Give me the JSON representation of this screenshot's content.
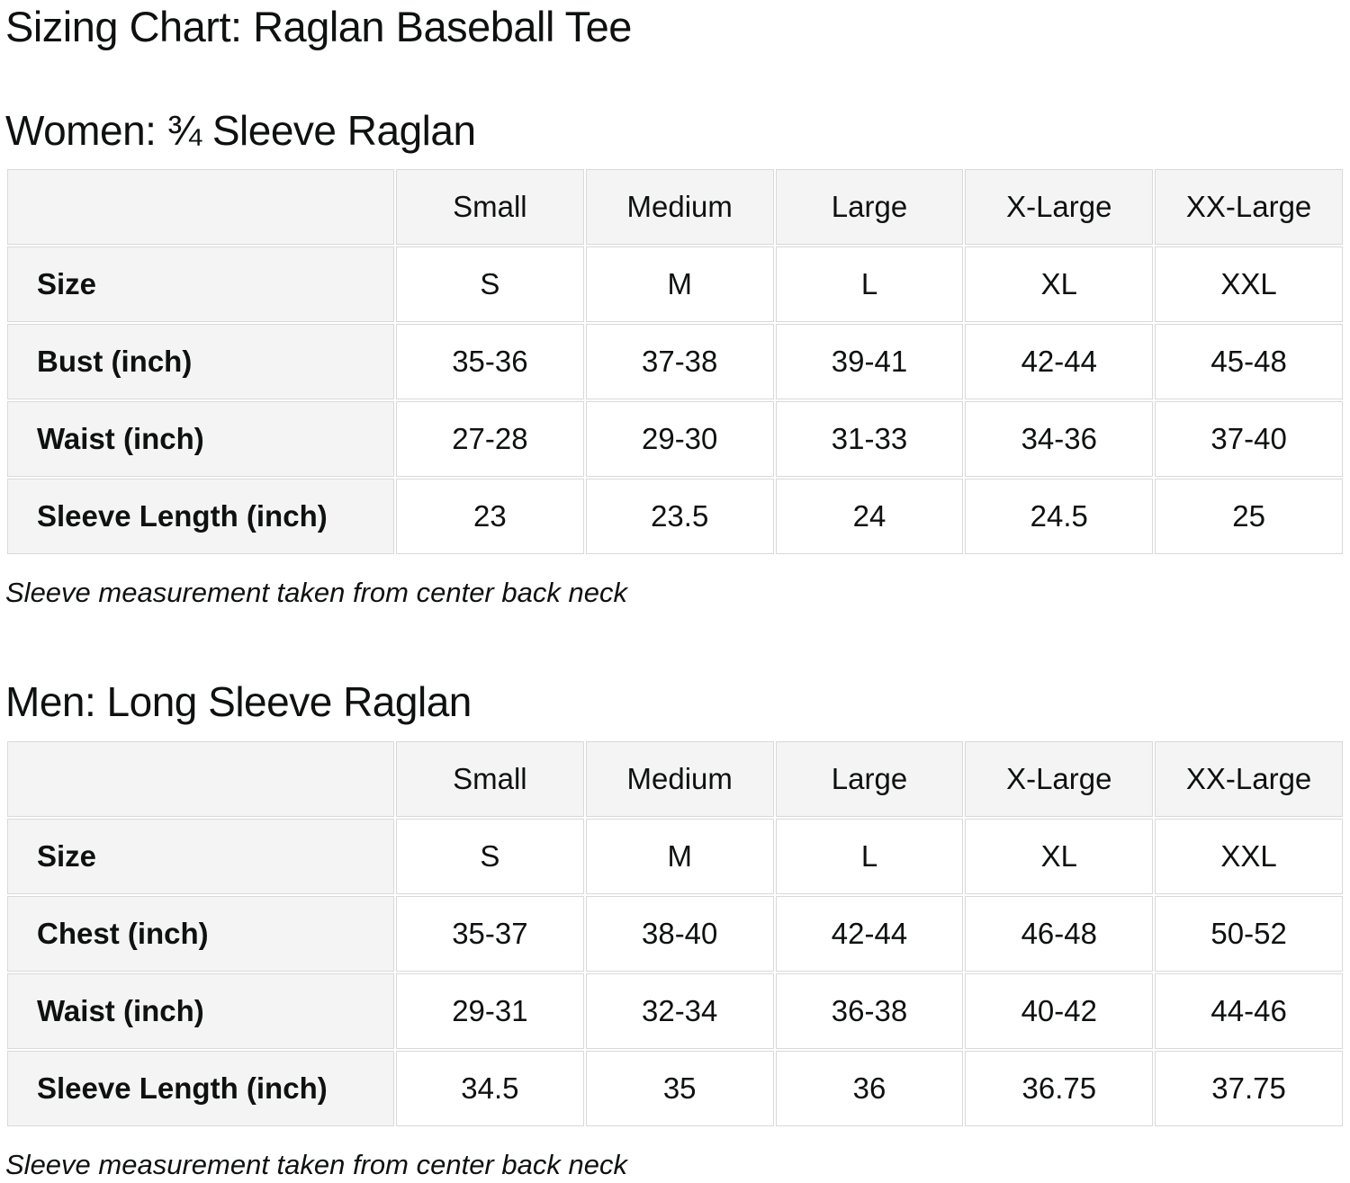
{
  "page": {
    "title": "Sizing Chart: Raglan Baseball Tee"
  },
  "colors": {
    "header_cell_bg": "#f4f4f4",
    "cell_border": "#d9d9d9",
    "data_cell_bg": "#ffffff",
    "text": "#0f1111"
  },
  "chart_data": [
    {
      "type": "table",
      "title": "Women: ¾ Sleeve Raglan",
      "columns": [
        "",
        "Small",
        "Medium",
        "Large",
        "X-Large",
        "XX-Large"
      ],
      "rows": [
        {
          "label": "Size",
          "values": [
            "S",
            "M",
            "L",
            "XL",
            "XXL"
          ]
        },
        {
          "label": "Bust (inch)",
          "values": [
            "35-36",
            "37-38",
            "39-41",
            "42-44",
            "45-48"
          ]
        },
        {
          "label": "Waist (inch)",
          "values": [
            "27-28",
            "29-30",
            "31-33",
            "34-36",
            "37-40"
          ]
        },
        {
          "label": "Sleeve Length (inch)",
          "values": [
            "23",
            "23.5",
            "24",
            "24.5",
            "25"
          ]
        }
      ],
      "note": "Sleeve measurement taken from center back neck"
    },
    {
      "type": "table",
      "title": "Men: Long Sleeve Raglan",
      "columns": [
        "",
        "Small",
        "Medium",
        "Large",
        "X-Large",
        "XX-Large"
      ],
      "rows": [
        {
          "label": "Size",
          "values": [
            "S",
            "M",
            "L",
            "XL",
            "XXL"
          ]
        },
        {
          "label": "Chest (inch)",
          "values": [
            "35-37",
            "38-40",
            "42-44",
            "46-48",
            "50-52"
          ]
        },
        {
          "label": "Waist (inch)",
          "values": [
            "29-31",
            "32-34",
            "36-38",
            "40-42",
            "44-46"
          ]
        },
        {
          "label": "Sleeve Length (inch)",
          "values": [
            "34.5",
            "35",
            "36",
            "36.75",
            "37.75"
          ]
        }
      ],
      "note": "Sleeve measurement taken from center back neck"
    }
  ]
}
